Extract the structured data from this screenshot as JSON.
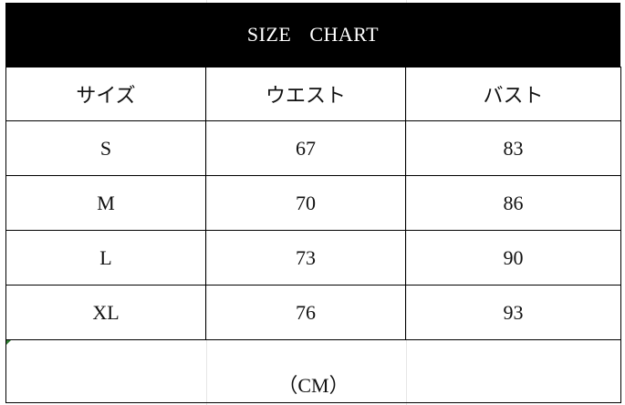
{
  "title": "SIZE CHART",
  "columns": [
    "サイズ",
    "ウエスト",
    "バスト"
  ],
  "rows": [
    [
      "S",
      "67",
      "83"
    ],
    [
      "M",
      "70",
      "86"
    ],
    [
      "L",
      "73",
      "90"
    ],
    [
      "XL",
      "76",
      "93"
    ]
  ],
  "unit_note": "（CM）",
  "colors": {
    "title_bg": "#000000",
    "title_text": "#ffffff",
    "border": "#000000"
  }
}
